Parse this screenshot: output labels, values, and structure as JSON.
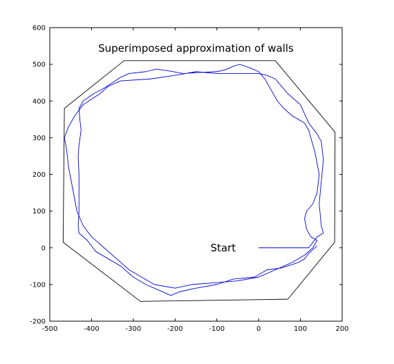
{
  "chart_data": {
    "type": "line",
    "title": "Superimposed approximation of walls",
    "xlabel": "",
    "ylabel": "",
    "xlim": [
      -500,
      200
    ],
    "ylim": [
      -200,
      600
    ],
    "xticks": [
      -500,
      -400,
      -300,
      -200,
      -100,
      0,
      100,
      200
    ],
    "yticks": [
      -200,
      -100,
      0,
      100,
      200,
      300,
      400,
      500,
      600
    ],
    "grid": false,
    "series": [
      {
        "key": "walls",
        "color": "#000000",
        "closed": true,
        "points": [
          [
            -322,
            510
          ],
          [
            40,
            510
          ],
          [
            183,
            315
          ],
          [
            182,
            15
          ],
          [
            70,
            -140
          ],
          [
            -283,
            -146
          ],
          [
            -468,
            15
          ],
          [
            -465,
            380
          ]
        ]
      },
      {
        "key": "robot-path",
        "color": "#0000cc",
        "closed": false,
        "points": [
          [
            0,
            0
          ],
          [
            120,
            0
          ],
          [
            140,
            30
          ],
          [
            155,
            40
          ],
          [
            150,
            60
          ],
          [
            145,
            120
          ],
          [
            150,
            180
          ],
          [
            155,
            240
          ],
          [
            150,
            290
          ],
          [
            140,
            310
          ],
          [
            120,
            340
          ],
          [
            100,
            390
          ],
          [
            70,
            420
          ],
          [
            40,
            460
          ],
          [
            20,
            470
          ],
          [
            0,
            475
          ],
          [
            -100,
            475
          ],
          [
            -150,
            480
          ],
          [
            -200,
            470
          ],
          [
            -260,
            460
          ],
          [
            -330,
            455
          ],
          [
            -360,
            440
          ],
          [
            -380,
            420
          ],
          [
            -420,
            390
          ],
          [
            -440,
            360
          ],
          [
            -455,
            330
          ],
          [
            -465,
            300
          ],
          [
            -460,
            270
          ],
          [
            -455,
            220
          ],
          [
            -445,
            160
          ],
          [
            -435,
            100
          ],
          [
            -420,
            60
          ],
          [
            -400,
            30
          ],
          [
            -370,
            0
          ],
          [
            -340,
            -30
          ],
          [
            -310,
            -60
          ],
          [
            -280,
            -80
          ],
          [
            -250,
            -100
          ],
          [
            -200,
            -110
          ],
          [
            -160,
            -100
          ],
          [
            -100,
            -95
          ],
          [
            -50,
            -90
          ],
          [
            0,
            -80
          ],
          [
            40,
            -60
          ],
          [
            80,
            -40
          ],
          [
            110,
            -20
          ],
          [
            130,
            0
          ],
          [
            140,
            20
          ],
          [
            125,
            30
          ],
          [
            115,
            50
          ],
          [
            110,
            80
          ],
          [
            115,
            100
          ],
          [
            130,
            120
          ],
          [
            140,
            150
          ],
          [
            145,
            200
          ],
          [
            140,
            230
          ],
          [
            135,
            260
          ],
          [
            130,
            280
          ],
          [
            125,
            300
          ],
          [
            120,
            320
          ],
          [
            110,
            340
          ],
          [
            95,
            350
          ],
          [
            80,
            360
          ],
          [
            60,
            380
          ],
          [
            45,
            400
          ],
          [
            30,
            430
          ],
          [
            15,
            460
          ],
          [
            0,
            480
          ],
          [
            -20,
            490
          ],
          [
            -45,
            500
          ],
          [
            -60,
            495
          ],
          [
            -80,
            485
          ],
          [
            -100,
            480
          ],
          [
            -140,
            478
          ],
          [
            -180,
            475
          ],
          [
            -220,
            483
          ],
          [
            -245,
            487
          ],
          [
            -270,
            480
          ],
          [
            -310,
            475
          ],
          [
            -330,
            465
          ],
          [
            -350,
            450
          ],
          [
            -370,
            435
          ],
          [
            -395,
            420
          ],
          [
            -420,
            400
          ],
          [
            -430,
            380
          ],
          [
            -428,
            350
          ],
          [
            -425,
            320
          ],
          [
            -430,
            280
          ],
          [
            -432,
            250
          ],
          [
            -430,
            200
          ],
          [
            -430,
            150
          ],
          [
            -430,
            100
          ],
          [
            -432,
            60
          ],
          [
            -430,
            40
          ],
          [
            -410,
            20
          ],
          [
            -390,
            -10
          ],
          [
            -360,
            -30
          ],
          [
            -330,
            -50
          ],
          [
            -300,
            -80
          ],
          [
            -270,
            -100
          ],
          [
            -240,
            -115
          ],
          [
            -210,
            -130
          ],
          [
            -190,
            -120
          ],
          [
            -150,
            -110
          ],
          [
            -100,
            -100
          ],
          [
            -60,
            -85
          ],
          [
            -10,
            -80
          ],
          [
            20,
            -60
          ],
          [
            55,
            -55
          ],
          [
            95,
            -40
          ],
          [
            110,
            -30
          ],
          [
            120,
            -15
          ],
          [
            130,
            -5
          ],
          [
            140,
            5
          ]
        ]
      }
    ],
    "annotations": [
      {
        "text": "Start",
        "x": -85,
        "y": 0
      }
    ]
  }
}
